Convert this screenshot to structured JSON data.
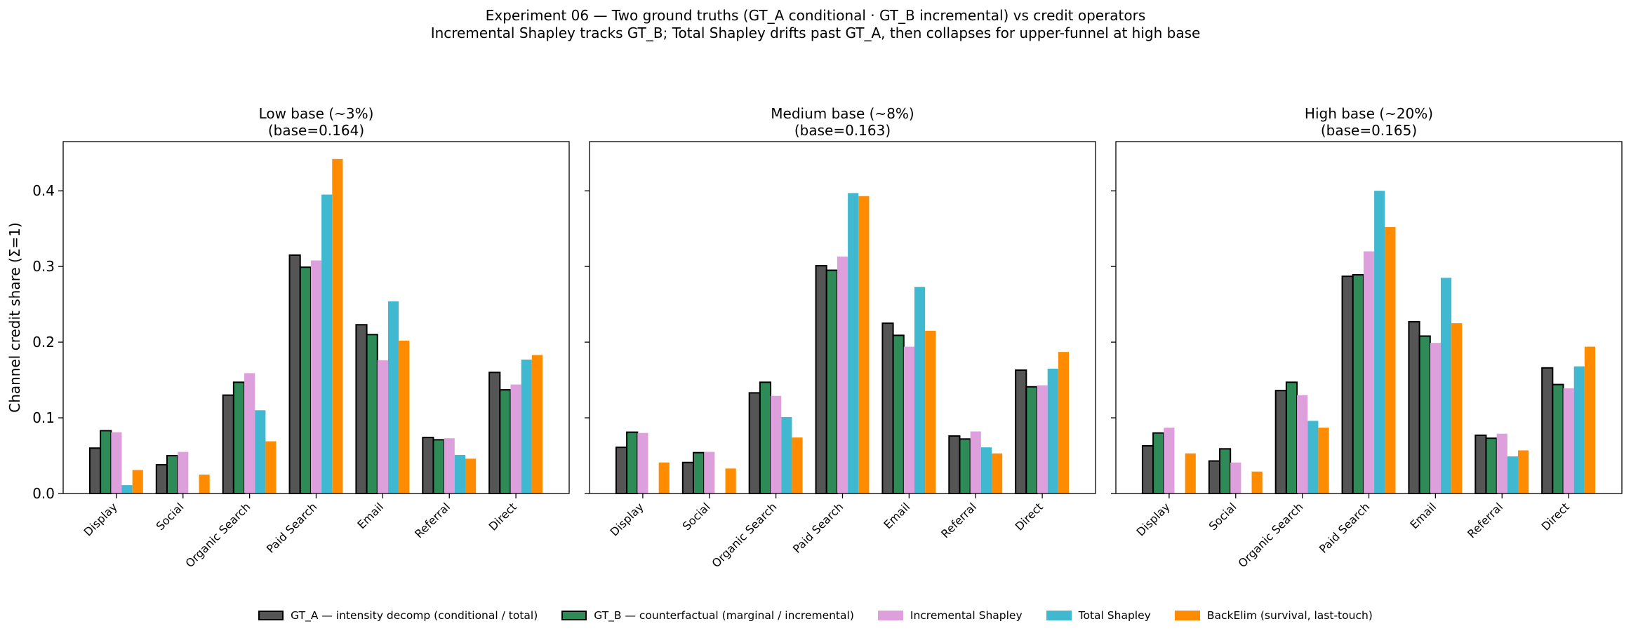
{
  "figure": {
    "title_line1": "Experiment 06 — Two ground truths (GT_A conditional · GT_B incremental) vs credit operators",
    "title_line2": "Incremental Shapley tracks GT_B; Total Shapley drifts past GT_A, then collapses for upper-funnel at high base",
    "ylabel": "Channel credit share (Σ=1)"
  },
  "legend": [
    {
      "name": "GT_A — intensity decomp (conditional / total)",
      "color": "#555555",
      "edge": "#000000"
    },
    {
      "name": "GT_B — counterfactual (marginal / incremental)",
      "color": "#2e8b57",
      "edge": "#000000"
    },
    {
      "name": "Incremental Shapley",
      "color": "#dda0dd",
      "edge": ""
    },
    {
      "name": "Total Shapley",
      "color": "#40b8d0",
      "edge": ""
    },
    {
      "name": "BackElim (survival, last-touch)",
      "color": "#ff8c00",
      "edge": ""
    }
  ],
  "chart_data": [
    {
      "type": "bar",
      "title": "Low base (~3%)",
      "subtitle": "(base=0.164)",
      "categories": [
        "Display",
        "Social",
        "Organic Search",
        "Paid Search",
        "Email",
        "Referral",
        "Direct"
      ],
      "ylim": [
        0,
        0.465
      ],
      "yticks": [
        0.0,
        0.1,
        0.2,
        0.3,
        0.4
      ],
      "series": [
        {
          "name": "GT_A — intensity decomp (conditional / total)",
          "values": [
            0.06,
            0.038,
            0.13,
            0.315,
            0.223,
            0.074,
            0.16
          ]
        },
        {
          "name": "GT_B — counterfactual (marginal / incremental)",
          "values": [
            0.083,
            0.05,
            0.147,
            0.299,
            0.21,
            0.071,
            0.137
          ]
        },
        {
          "name": "Incremental Shapley",
          "values": [
            0.081,
            0.055,
            0.159,
            0.308,
            0.176,
            0.073,
            0.144
          ]
        },
        {
          "name": "Total Shapley",
          "values": [
            0.011,
            0.0,
            0.11,
            0.395,
            0.254,
            0.051,
            0.177
          ]
        },
        {
          "name": "BackElim (survival, last-touch)",
          "values": [
            0.031,
            0.025,
            0.069,
            0.442,
            0.202,
            0.046,
            0.183
          ]
        }
      ]
    },
    {
      "type": "bar",
      "title": "Medium base (~8%)",
      "subtitle": "(base=0.163)",
      "categories": [
        "Display",
        "Social",
        "Organic Search",
        "Paid Search",
        "Email",
        "Referral",
        "Direct"
      ],
      "ylim": [
        0,
        0.465
      ],
      "yticks": [
        0.0,
        0.1,
        0.2,
        0.3,
        0.4
      ],
      "series": [
        {
          "name": "GT_A — intensity decomp (conditional / total)",
          "values": [
            0.061,
            0.041,
            0.133,
            0.301,
            0.225,
            0.076,
            0.163
          ]
        },
        {
          "name": "GT_B — counterfactual (marginal / incremental)",
          "values": [
            0.081,
            0.054,
            0.147,
            0.295,
            0.209,
            0.072,
            0.141
          ]
        },
        {
          "name": "Incremental Shapley",
          "values": [
            0.08,
            0.055,
            0.129,
            0.313,
            0.194,
            0.082,
            0.143
          ]
        },
        {
          "name": "Total Shapley",
          "values": [
            0.0,
            0.0,
            0.101,
            0.397,
            0.273,
            0.061,
            0.165
          ]
        },
        {
          "name": "BackElim (survival, last-touch)",
          "values": [
            0.041,
            0.033,
            0.074,
            0.393,
            0.215,
            0.053,
            0.187
          ]
        }
      ]
    },
    {
      "type": "bar",
      "title": "High base (~20%)",
      "subtitle": "(base=0.165)",
      "categories": [
        "Display",
        "Social",
        "Organic Search",
        "Paid Search",
        "Email",
        "Referral",
        "Direct"
      ],
      "ylim": [
        0,
        0.465
      ],
      "yticks": [
        0.0,
        0.1,
        0.2,
        0.3,
        0.4
      ],
      "series": [
        {
          "name": "GT_A — intensity decomp (conditional / total)",
          "values": [
            0.063,
            0.043,
            0.136,
            0.287,
            0.227,
            0.077,
            0.166
          ]
        },
        {
          "name": "GT_B — counterfactual (marginal / incremental)",
          "values": [
            0.08,
            0.059,
            0.147,
            0.289,
            0.208,
            0.073,
            0.144
          ]
        },
        {
          "name": "Incremental Shapley",
          "values": [
            0.087,
            0.041,
            0.13,
            0.32,
            0.199,
            0.079,
            0.139
          ]
        },
        {
          "name": "Total Shapley",
          "values": [
            0.0,
            0.0,
            0.096,
            0.4,
            0.285,
            0.049,
            0.168
          ]
        },
        {
          "name": "BackElim (survival, last-touch)",
          "values": [
            0.053,
            0.029,
            0.087,
            0.352,
            0.225,
            0.057,
            0.194
          ]
        }
      ]
    }
  ]
}
